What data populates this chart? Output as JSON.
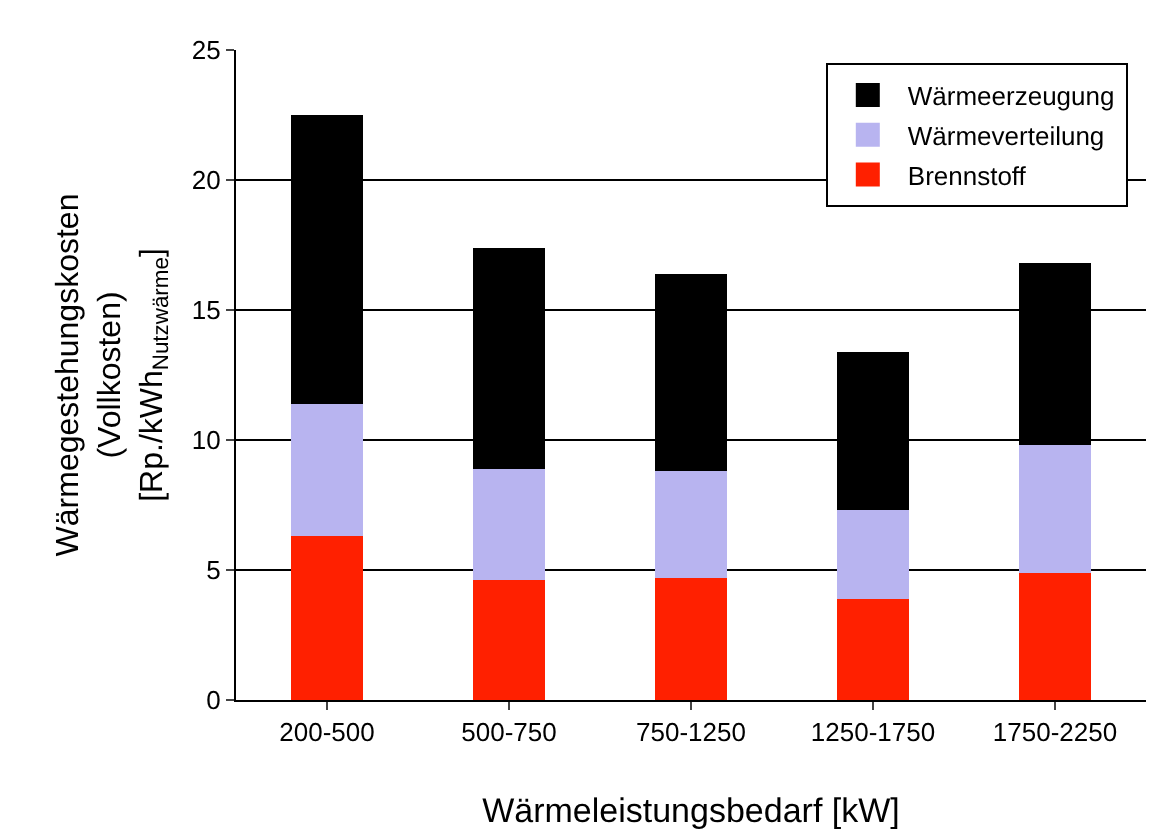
{
  "chart_data": {
    "type": "bar",
    "stacked": true,
    "xlabel": "Wärmeleistungsbedarf [kW]",
    "ylabel": "Wärmegestehungskosten\n(Vollkosten)\n[Rp./kWh$_{Nutzwärme}$]",
    "categories": [
      "200-500",
      "500-750",
      "750-1250",
      "1250-1750",
      "1750-2250"
    ],
    "series": [
      {
        "name": "Brennstoff",
        "color": "#ff2000",
        "values": [
          6.3,
          4.6,
          4.7,
          3.9,
          4.9
        ]
      },
      {
        "name": "Wärmeverteilung",
        "color": "#b8b4f0",
        "values": [
          5.1,
          4.3,
          4.1,
          3.4,
          4.9
        ]
      },
      {
        "name": "Wärmeerzeugung",
        "color": "#000000",
        "values": [
          11.1,
          8.5,
          7.6,
          6.1,
          7.0
        ]
      }
    ],
    "ylim": [
      0,
      25
    ],
    "yticks": [
      0,
      5,
      10,
      15,
      20,
      25
    ],
    "grid": "y",
    "legend": "top right"
  }
}
